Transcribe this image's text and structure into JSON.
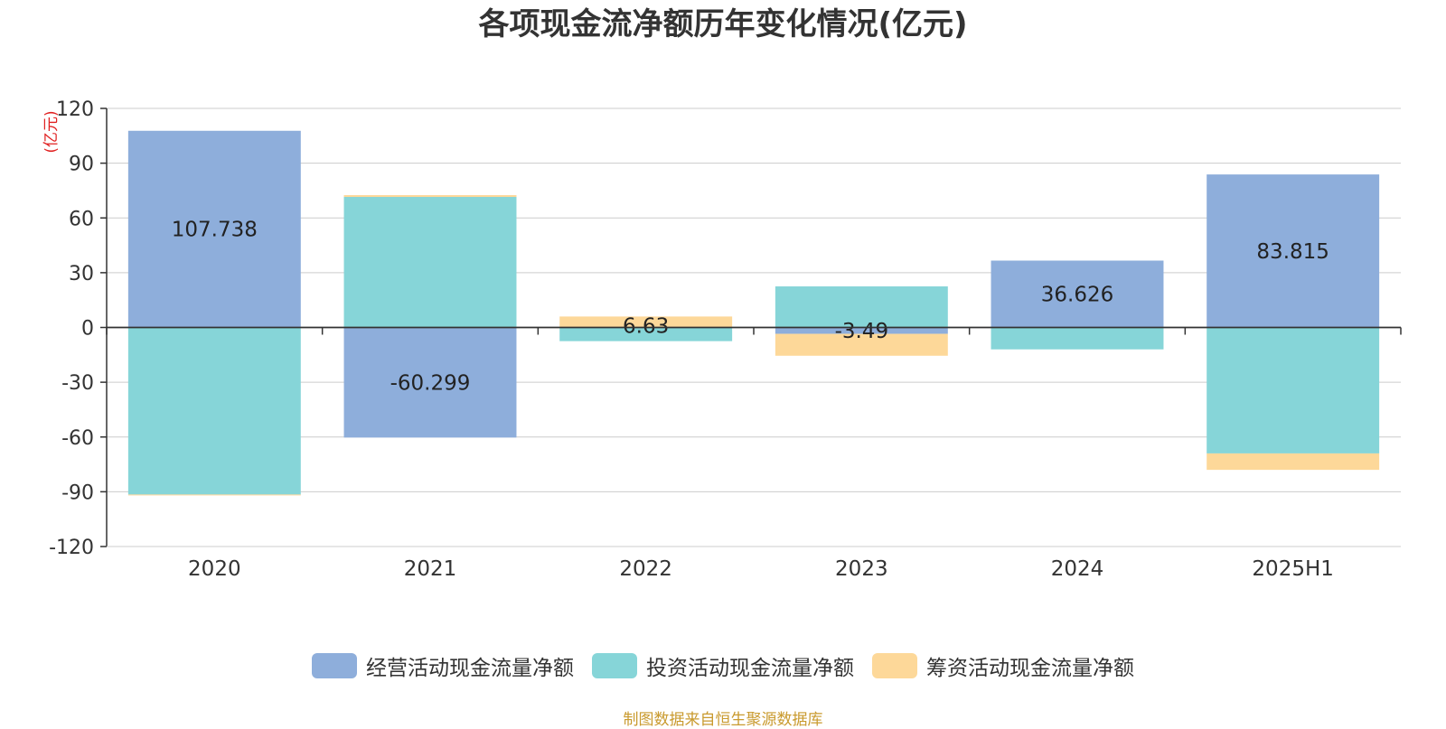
{
  "chart_data": {
    "type": "bar",
    "stacked": true,
    "title": "各项现金流净额历年变化情况(亿元)",
    "ylabel": "(亿元)",
    "categories": [
      "2020",
      "2021",
      "2022",
      "2023",
      "2024",
      "2025H1"
    ],
    "ylim": [
      -120,
      120
    ],
    "yticks": [
      120,
      90,
      60,
      30,
      0,
      -30,
      -60,
      -90,
      -120
    ],
    "grid": true,
    "legend_position": "bottom",
    "series": [
      {
        "name": "经营活动现金流量净额",
        "color": "#8eaedb",
        "values": [
          107.738,
          -60.299,
          0.0,
          -3.49,
          36.626,
          83.815
        ],
        "labels": [
          "107.738",
          "-60.299",
          "",
          "-3.49",
          "36.626",
          "83.815"
        ]
      },
      {
        "name": "投资活动现金流量净额",
        "color": "#86d5d8",
        "values": [
          -91.5,
          71.5,
          -7.5,
          22.5,
          -12.0,
          -69.0
        ],
        "labels": [
          "",
          "",
          "",
          "",
          "",
          ""
        ]
      },
      {
        "name": "筹资活动现金流量净额",
        "color": "#fdd899",
        "values": [
          -0.5,
          1.0,
          6.0,
          -12.0,
          0.0,
          -9.0
        ],
        "labels": [
          "",
          "",
          "",
          "",
          "",
          ""
        ]
      }
    ],
    "partial_labels": [
      "",
      "",
      "6.63",
      "",
      "",
      ""
    ]
  },
  "source_note": "制图数据来自恒生聚源数据库"
}
